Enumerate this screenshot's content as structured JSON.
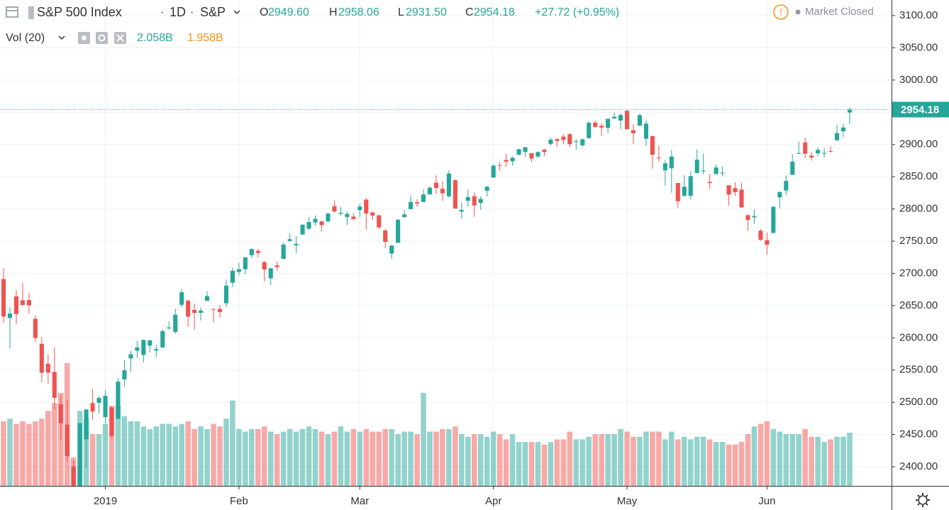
{
  "header": {
    "symbol": "S&P 500 Index",
    "interval": "1D",
    "exchange": "S&P",
    "o_label": "O",
    "o": "2949.60",
    "h_label": "H",
    "h": "2958.06",
    "l_label": "L",
    "l": "2931.50",
    "c_label": "C",
    "c": "2954.18",
    "change": "+27.72 (+0.95%)",
    "status": "Market Closed",
    "vol_label": "Vol (20)",
    "vol": "2.058B",
    "vol_ma": "1.958B"
  },
  "chart_data": {
    "type": "candlestick",
    "up_color": "#26a69a",
    "down_color": "#ef5350",
    "grid": true,
    "ylim": [
      2370.3,
      3124.2
    ],
    "yticks": [
      {
        "value": 2400,
        "label": "2400.00"
      },
      {
        "value": 2450,
        "label": "2450.00"
      },
      {
        "value": 2500,
        "label": "2500.00"
      },
      {
        "value": 2550,
        "label": "2550.00"
      },
      {
        "value": 2600,
        "label": "2600.00"
      },
      {
        "value": 2650,
        "label": "2650.00"
      },
      {
        "value": 2700,
        "label": "2700.00"
      },
      {
        "value": 2750,
        "label": "2750.00"
      },
      {
        "value": 2800,
        "label": "2800.00"
      },
      {
        "value": 2850,
        "label": "2850.00"
      },
      {
        "value": 2900,
        "label": "2900.00"
      },
      {
        "value": 2950,
        "label": "2950.00"
      },
      {
        "value": 3000,
        "label": "3000.00"
      },
      {
        "value": 3050,
        "label": "3050.00"
      },
      {
        "value": 3100,
        "label": "3100.00"
      }
    ],
    "xlim": [
      -0.56,
      139.58
    ],
    "xticks": [
      {
        "value": 16,
        "label": "2019"
      },
      {
        "value": 37,
        "label": "Feb"
      },
      {
        "value": 56,
        "label": "Mar"
      },
      {
        "value": 77,
        "label": "Apr"
      },
      {
        "value": 98,
        "label": "May"
      },
      {
        "value": 120,
        "label": "Jun"
      }
    ],
    "volume_ylim": [
      0,
      18.8
    ],
    "ohlc": [
      [
        2691.26,
        2708.54,
        2623.14,
        2633.08
      ],
      [
        2630.86,
        2647.51,
        2583.23,
        2637.72
      ],
      [
        2664.44,
        2674.35,
        2621.3,
        2636.78
      ],
      [
        2658.23,
        2685.44,
        2650.26,
        2651.07
      ],
      [
        2658.7,
        2670.19,
        2637.27,
        2650.54
      ],
      [
        2629.68,
        2635.07,
        2593.84,
        2599.95
      ],
      [
        2590.75,
        2601.13,
        2530.54,
        2545.94
      ],
      [
        2559.9,
        2573.99,
        2528.71,
        2546.16
      ],
      [
        2547.05,
        2585.29,
        2488.96,
        2506.96
      ],
      [
        2496.77,
        2509.63,
        2441.18,
        2467.42
      ],
      [
        2465.38,
        2504.41,
        2408.55,
        2416.62
      ],
      [
        2400.56,
        2410.34,
        2351.1,
        2351.1
      ],
      [
        2363.12,
        2467.76,
        2346.58,
        2467.7
      ],
      [
        2442.5,
        2489.1,
        2397.94,
        2488.83
      ],
      [
        2498.77,
        2520.27,
        2472.89,
        2485.74
      ],
      [
        2498.94,
        2509.24,
        2482.82,
        2506.85
      ],
      [
        2476.96,
        2519.49,
        2467.47,
        2510.03
      ],
      [
        2491.92,
        2493.14,
        2443.96,
        2447.89
      ],
      [
        2474.33,
        2538.07,
        2474.33,
        2531.94
      ],
      [
        2535.61,
        2566.16,
        2524.56,
        2549.69
      ],
      [
        2568.11,
        2579.82,
        2547.56,
        2574.41
      ],
      [
        2580.0,
        2595.32,
        2568.89,
        2584.96
      ],
      [
        2573.51,
        2597.82,
        2562.02,
        2596.64
      ],
      [
        2588.11,
        2596.27,
        2577.4,
        2596.26
      ],
      [
        2580.31,
        2589.32,
        2570.41,
        2582.61
      ],
      [
        2585.1,
        2613.08,
        2585.1,
        2610.3
      ],
      [
        2614.75,
        2625.76,
        2612.68,
        2616.1
      ],
      [
        2609.28,
        2645.06,
        2606.36,
        2635.96
      ],
      [
        2651.27,
        2675.47,
        2647.58,
        2670.71
      ],
      [
        2657.88,
        2657.88,
        2617.27,
        2632.9
      ],
      [
        2643.48,
        2653.19,
        2612.86,
        2638.7
      ],
      [
        2638.84,
        2647.2,
        2627.01,
        2642.33
      ],
      [
        2657.44,
        2672.38,
        2657.33,
        2664.76
      ],
      [
        2644.97,
        2644.97,
        2624.06,
        2643.85
      ],
      [
        2644.89,
        2650.93,
        2631.05,
        2640.0
      ],
      [
        2653.62,
        2690.44,
        2648.34,
        2681.05
      ],
      [
        2685.49,
        2708.95,
        2678.65,
        2704.1
      ],
      [
        2702.32,
        2716.66,
        2696.88,
        2706.53
      ],
      [
        2706.49,
        2724.99,
        2698.75,
        2724.87
      ],
      [
        2728.34,
        2738.98,
        2724.03,
        2737.7
      ],
      [
        2735.05,
        2738.08,
        2724.15,
        2731.61
      ],
      [
        2717.53,
        2719.32,
        2687.26,
        2706.05
      ],
      [
        2692.36,
        2708.07,
        2681.83,
        2707.88
      ],
      [
        2712.4,
        2718.05,
        2703.79,
        2709.8
      ],
      [
        2722.61,
        2748.19,
        2722.61,
        2744.73
      ],
      [
        2750.3,
        2761.85,
        2748.63,
        2753.03
      ],
      [
        2743.5,
        2757.9,
        2731.23,
        2745.73
      ],
      [
        2760.24,
        2775.66,
        2760.24,
        2775.6
      ],
      [
        2769.28,
        2787.33,
        2767.29,
        2779.76
      ],
      [
        2779.05,
        2789.88,
        2774.06,
        2784.7
      ],
      [
        2780.67,
        2781.58,
        2764.55,
        2774.88
      ],
      [
        2780.67,
        2794.2,
        2779.11,
        2792.67
      ],
      [
        2804.35,
        2813.49,
        2794.99,
        2796.11
      ],
      [
        2792.36,
        2803.12,
        2789.47,
        2793.9
      ],
      [
        2787.5,
        2795.76,
        2775.13,
        2792.38
      ],
      [
        2788.11,
        2793.73,
        2782.51,
        2784.49
      ],
      [
        2798.22,
        2808.02,
        2787.38,
        2803.69
      ],
      [
        2814.37,
        2816.88,
        2767.66,
        2792.81
      ],
      [
        2794.41,
        2796.44,
        2782.97,
        2789.65
      ],
      [
        2790.27,
        2790.27,
        2768.69,
        2771.45
      ],
      [
        2766.53,
        2768.98,
        2739.09,
        2748.93
      ],
      [
        2730.79,
        2744.13,
        2722.27,
        2743.07
      ],
      [
        2747.61,
        2784.0,
        2747.61,
        2783.3
      ],
      [
        2787.34,
        2798.32,
        2786.73,
        2791.52
      ],
      [
        2799.78,
        2821.24,
        2799.78,
        2810.92
      ],
      [
        2810.38,
        2815.0,
        2803.46,
        2808.48
      ],
      [
        2810.79,
        2830.73,
        2810.79,
        2822.48
      ],
      [
        2822.61,
        2835.41,
        2821.99,
        2832.94
      ],
      [
        2840.76,
        2852.42,
        2823.27,
        2832.57
      ],
      [
        2831.34,
        2843.54,
        2812.43,
        2824.23
      ],
      [
        2819.72,
        2860.31,
        2817.38,
        2854.88
      ],
      [
        2844.52,
        2846.16,
        2800.47,
        2800.71
      ],
      [
        2796.01,
        2809.79,
        2785.02,
        2798.36
      ],
      [
        2812.66,
        2829.87,
        2803.99,
        2818.46
      ],
      [
        2819.72,
        2825.56,
        2787.72,
        2805.37
      ],
      [
        2809.4,
        2819.71,
        2798.77,
        2815.44
      ],
      [
        2828.27,
        2836.03,
        2819.23,
        2834.4
      ],
      [
        2848.63,
        2869.4,
        2848.63,
        2867.19
      ],
      [
        2868.24,
        2872.9,
        2858.75,
        2867.24
      ],
      [
        2876.09,
        2885.25,
        2865.17,
        2873.4
      ],
      [
        2873.99,
        2881.28,
        2867.14,
        2879.39
      ],
      [
        2884.16,
        2893.24,
        2882.99,
        2892.74
      ],
      [
        2888.46,
        2895.95,
        2880.78,
        2895.77
      ],
      [
        2886.58,
        2886.88,
        2873.33,
        2878.2
      ],
      [
        2881.37,
        2889.71,
        2879.13,
        2888.21
      ],
      [
        2891.92,
        2893.42,
        2881.99,
        2888.32
      ],
      [
        2900.86,
        2910.54,
        2898.37,
        2907.41
      ],
      [
        2908.32,
        2909.6,
        2896.48,
        2905.58
      ],
      [
        2912.26,
        2916.06,
        2900.71,
        2907.06
      ],
      [
        2916.04,
        2918.0,
        2895.45,
        2900.45
      ],
      [
        2904.81,
        2908.4,
        2891.9,
        2905.03
      ],
      [
        2898.78,
        2909.51,
        2896.35,
        2907.97
      ],
      [
        2909.99,
        2936.31,
        2908.53,
        2933.68
      ],
      [
        2934.0,
        2936.83,
        2926.05,
        2927.25
      ],
      [
        2928.99,
        2933.1,
        2912.84,
        2926.17
      ],
      [
        2925.81,
        2939.88,
        2917.56,
        2939.88
      ],
      [
        2940.58,
        2949.52,
        2939.35,
        2943.03
      ],
      [
        2937.14,
        2948.22,
        2924.11,
        2945.83
      ],
      [
        2952.33,
        2954.13,
        2923.36,
        2923.73
      ],
      [
        2922.16,
        2931.68,
        2900.5,
        2917.52
      ],
      [
        2929.21,
        2947.85,
        2929.21,
        2945.64
      ],
      [
        2908.89,
        2937.32,
        2898.21,
        2932.47
      ],
      [
        2913.03,
        2913.03,
        2862.6,
        2884.05
      ],
      [
        2879.61,
        2897.96,
        2873.28,
        2879.42
      ],
      [
        2859.84,
        2875.97,
        2836.4,
        2870.72
      ],
      [
        2863.1,
        2891.31,
        2825.39,
        2881.4
      ],
      [
        2840.19,
        2840.19,
        2801.43,
        2811.87
      ],
      [
        2820.12,
        2852.54,
        2820.12,
        2834.41
      ],
      [
        2820.38,
        2858.68,
        2815.08,
        2850.96
      ],
      [
        2855.8,
        2892.15,
        2855.8,
        2876.32
      ],
      [
        2858.6,
        2885.48,
        2854.23,
        2859.53
      ],
      [
        2841.94,
        2853.86,
        2831.29,
        2840.23
      ],
      [
        2854.02,
        2868.88,
        2854.02,
        2864.36
      ],
      [
        2856.06,
        2865.47,
        2851.11,
        2856.27
      ],
      [
        2836.7,
        2836.7,
        2805.49,
        2822.24
      ],
      [
        2832.41,
        2841.36,
        2820.19,
        2826.06
      ],
      [
        2830.03,
        2840.51,
        2801.58,
        2802.39
      ],
      [
        2790.25,
        2792.03,
        2766.06,
        2783.02
      ],
      [
        2786.94,
        2799.0,
        2776.74,
        2788.86
      ],
      [
        2766.15,
        2768.98,
        2750.52,
        2752.06
      ],
      [
        2751.53,
        2763.07,
        2728.81,
        2744.45
      ],
      [
        2762.64,
        2804.49,
        2762.64,
        2803.27
      ],
      [
        2818.09,
        2827.28,
        2800.92,
        2826.15
      ],
      [
        2828.51,
        2852.1,
        2822.45,
        2843.49
      ],
      [
        2852.87,
        2884.97,
        2852.87,
        2873.34
      ],
      [
        2885.83,
        2904.77,
        2885.51,
        2886.73
      ],
      [
        2903.27,
        2910.61,
        2878.53,
        2885.72
      ],
      [
        2882.73,
        2888.57,
        2874.68,
        2879.84
      ],
      [
        2886.24,
        2895.24,
        2881.99,
        2891.64
      ],
      [
        2886.82,
        2894.45,
        2879.62,
        2886.98
      ],
      [
        2889.75,
        2897.27,
        2887.3,
        2889.67
      ],
      [
        2906.71,
        2930.79,
        2905.44,
        2917.75
      ],
      [
        2920.55,
        2931.74,
        2911.43,
        2926.46
      ],
      [
        2949.6,
        2958.06,
        2931.5,
        2954.18
      ]
    ],
    "volume": [
      2.5,
      2.6,
      2.4,
      2.5,
      2.4,
      2.5,
      2.6,
      2.9,
      3.2,
      3.6,
      4.75,
      1.1,
      2.9,
      2.6,
      2.0,
      2.0,
      2.4,
      3.1,
      3.1,
      2.7,
      2.5,
      2.5,
      2.3,
      2.2,
      2.3,
      2.4,
      2.4,
      2.3,
      2.4,
      2.5,
      2.2,
      2.3,
      2.2,
      2.4,
      2.3,
      2.6,
      3.3,
      2.2,
      2.1,
      2.2,
      2.2,
      2.3,
      2.1,
      2.0,
      2.1,
      2.2,
      2.1,
      2.2,
      2.3,
      2.2,
      2.1,
      2.0,
      2.1,
      2.3,
      2.1,
      2.2,
      2.1,
      2.2,
      2.1,
      2.1,
      2.2,
      2.2,
      2.0,
      2.1,
      2.1,
      2.0,
      3.6,
      2.1,
      2.1,
      2.2,
      2.2,
      2.3,
      2.0,
      1.9,
      2.0,
      2.0,
      1.9,
      2.1,
      2.0,
      1.8,
      2.0,
      1.7,
      1.7,
      1.7,
      1.7,
      1.6,
      1.7,
      1.8,
      1.8,
      2.1,
      1.8,
      1.8,
      1.9,
      2.0,
      2.0,
      2.0,
      2.0,
      2.2,
      2.1,
      1.9,
      1.9,
      2.1,
      2.1,
      2.1,
      1.8,
      2.1,
      1.8,
      1.9,
      1.8,
      1.9,
      1.9,
      1.8,
      1.7,
      1.7,
      1.6,
      1.6,
      1.7,
      2.0,
      2.3,
      2.4,
      2.5,
      2.2,
      2.1,
      2.0,
      2.0,
      2.0,
      2.2,
      1.9,
      1.9,
      1.7,
      1.8,
      1.9,
      1.9,
      2.058
    ]
  }
}
